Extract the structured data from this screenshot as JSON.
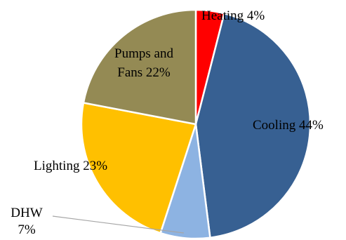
{
  "chart_data": {
    "type": "pie",
    "slices": [
      {
        "name": "Heating",
        "value": 4,
        "label_lines": [
          "Heating  4%"
        ],
        "color": "#ff0000"
      },
      {
        "name": "Cooling",
        "value": 44,
        "label_lines": [
          "Cooling  44%"
        ],
        "color": "#376092"
      },
      {
        "name": "DHW",
        "value": 7,
        "label_lines": [
          "DHW",
          "7%"
        ],
        "color": "#8db3e2"
      },
      {
        "name": "Lighting",
        "value": 23,
        "label_lines": [
          "Lighting  23%"
        ],
        "color": "#ffc000"
      },
      {
        "name": "Pumps and Fans",
        "value": 22,
        "label_lines": [
          "Pumps and",
          "Fans 22%"
        ],
        "color": "#948a54"
      }
    ],
    "start_angle_deg": 0,
    "direction": "clockwise",
    "slice_border_color": "#ffffff",
    "leader_line_color": "#a6a6a6"
  }
}
